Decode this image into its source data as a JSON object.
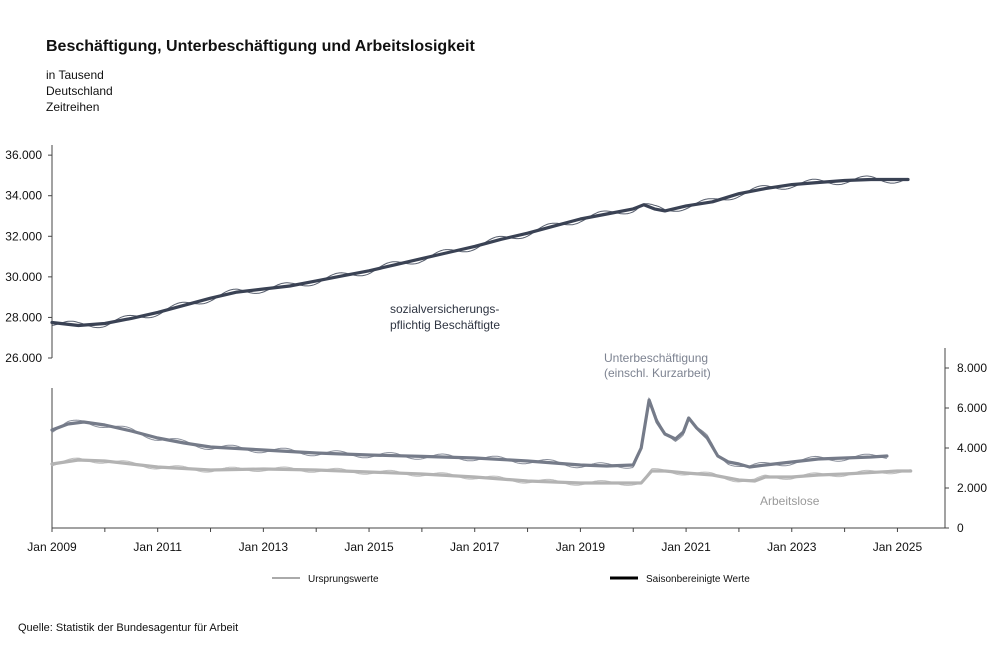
{
  "chart_data": {
    "type": "line",
    "title": "Beschäftigung, Unterbeschäftigung und Arbeitslosigkeit",
    "subtitle": [
      "in Tausend",
      "Deutschland",
      "Zeitreihen"
    ],
    "x_tick_labels": [
      "Jan 2009",
      "Jan 2011",
      "Jan 2013",
      "Jan 2015",
      "Jan 2017",
      "Jan 2019",
      "Jan 2021",
      "Jan 2023",
      "Jan 2025"
    ],
    "x_range": [
      2009.0,
      2025.9
    ],
    "upper_axis": {
      "side": "left",
      "ylim": [
        26000,
        36500
      ],
      "tick_labels": [
        "26.000",
        "28.000",
        "30.000",
        "32.000",
        "34.000",
        "36.000"
      ],
      "ticks": [
        26000,
        28000,
        30000,
        32000,
        34000,
        36000
      ]
    },
    "lower_axis": {
      "side": "right",
      "ylim": [
        0,
        9000
      ],
      "tick_labels": [
        "0",
        "2.000",
        "4.000",
        "6.000",
        "8.000"
      ],
      "ticks": [
        0,
        2000,
        4000,
        6000,
        8000
      ]
    },
    "annotations": {
      "beschaeftigte": [
        "sozialversicherungs-",
        "pflichtig Beschäftigte"
      ],
      "unterbeschaeftigung": [
        "Unterbeschäftigung",
        "(einschl. Kurzarbeit)"
      ],
      "arbeitslose": "Arbeitslose"
    },
    "legend": {
      "original": "Ursprungswerte",
      "seasonal": "Saisonbereinigte Werte"
    },
    "series": [
      {
        "name": "sozialversicherungspflichtig Beschäftigte",
        "axis": "upper",
        "color": "#3a4254",
        "seasonal_amplitude": 180,
        "x": [
          2009.0,
          2009.5,
          2010.0,
          2010.5,
          2011.0,
          2011.5,
          2012.0,
          2012.5,
          2013.0,
          2013.5,
          2014.0,
          2014.5,
          2015.0,
          2015.5,
          2016.0,
          2016.5,
          2017.0,
          2017.5,
          2018.0,
          2018.5,
          2019.0,
          2019.5,
          2020.0,
          2020.2,
          2020.4,
          2020.6,
          2021.0,
          2021.5,
          2022.0,
          2022.5,
          2023.0,
          2023.5,
          2024.0,
          2024.5,
          2025.0,
          2025.2
        ],
        "values": [
          27750,
          27600,
          27700,
          27950,
          28250,
          28600,
          28950,
          29250,
          29400,
          29550,
          29800,
          30050,
          30300,
          30600,
          30900,
          31200,
          31500,
          31850,
          32150,
          32500,
          32850,
          33100,
          33350,
          33550,
          33350,
          33250,
          33500,
          33700,
          34100,
          34350,
          34550,
          34650,
          34750,
          34800,
          34800,
          34800
        ]
      },
      {
        "name": "Unterbeschäftigung (einschl. Kurzarbeit)",
        "axis": "lower",
        "color": "#757b89",
        "seasonal_amplitude": 150,
        "x": [
          2009.0,
          2009.3,
          2009.6,
          2010.0,
          2010.5,
          2011.0,
          2011.5,
          2012.0,
          2013.0,
          2014.0,
          2015.0,
          2016.0,
          2017.0,
          2018.0,
          2019.0,
          2019.5,
          2020.0,
          2020.15,
          2020.3,
          2020.45,
          2020.6,
          2020.8,
          2020.95,
          2021.05,
          2021.2,
          2021.4,
          2021.6,
          2021.8,
          2022.0,
          2022.2,
          2022.5,
          2023.0,
          2023.5,
          2024.0,
          2024.5,
          2024.8
        ],
        "values": [
          4900,
          5200,
          5300,
          5150,
          4850,
          4500,
          4250,
          4050,
          3900,
          3750,
          3650,
          3580,
          3500,
          3350,
          3150,
          3100,
          3150,
          4000,
          6400,
          5300,
          4700,
          4450,
          4800,
          5500,
          5000,
          4500,
          3600,
          3300,
          3200,
          3050,
          3150,
          3300,
          3450,
          3500,
          3550,
          3600
        ]
      },
      {
        "name": "Arbeitslose",
        "axis": "lower",
        "color": "#b3b3b3",
        "seasonal_amplitude": 120,
        "x": [
          2009.0,
          2009.5,
          2010.0,
          2010.5,
          2011.0,
          2012.0,
          2013.0,
          2014.0,
          2015.0,
          2016.0,
          2017.0,
          2018.0,
          2019.0,
          2019.5,
          2020.0,
          2020.15,
          2020.35,
          2020.6,
          2021.0,
          2021.5,
          2022.0,
          2022.3,
          2022.5,
          2023.0,
          2023.5,
          2024.0,
          2025.0,
          2025.25
        ],
        "values": [
          3200,
          3400,
          3350,
          3200,
          3050,
          2900,
          2950,
          2900,
          2800,
          2700,
          2550,
          2350,
          2250,
          2250,
          2250,
          2250,
          2850,
          2850,
          2750,
          2650,
          2400,
          2350,
          2550,
          2550,
          2650,
          2700,
          2850,
          2850
        ]
      }
    ]
  },
  "source": "Quelle: Statistik der Bundesagentur für Arbeit"
}
